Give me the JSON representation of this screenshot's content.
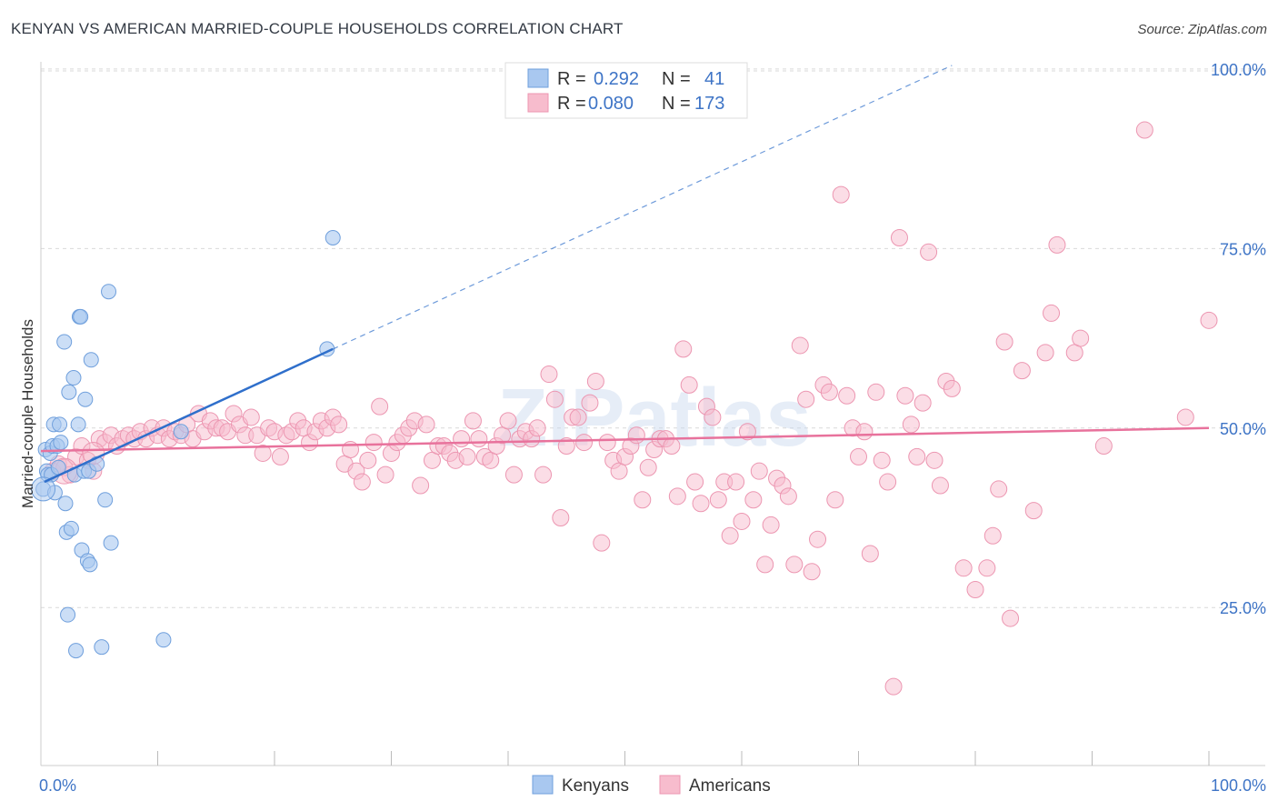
{
  "title": "KENYAN VS AMERICAN MARRIED-COUPLE HOUSEHOLDS CORRELATION CHART",
  "source": "Source: ZipAtlas.com",
  "watermark": "ZIPatlas",
  "colors": {
    "kenyans_fill": "#a9c8f0",
    "kenyans_stroke": "#6f9fdc",
    "kenyans_line": "#2f6fcb",
    "americans_fill": "#f7bccd",
    "americans_stroke": "#ec96b1",
    "americans_line": "#e8729c",
    "tick": "#3e74c6",
    "grid": "#d9d9d9"
  },
  "legend": {
    "row1": {
      "r_label": "R =",
      "r_value": "0.292",
      "n_label": "N =",
      "n_value": "41"
    },
    "row2": {
      "r_label": "R =",
      "r_value": "0.080",
      "n_label": "N =",
      "n_value": "173"
    }
  },
  "chart_data": {
    "type": "scatter",
    "title": "KENYAN VS AMERICAN MARRIED-COUPLE HOUSEHOLDS CORRELATION CHART",
    "xlabel": "",
    "ylabel": "Married-couple Households",
    "xlim": [
      0,
      100
    ],
    "ylim": [
      3,
      101
    ],
    "x_tick_labels": [
      "0.0%",
      "100.0%"
    ],
    "y_ticks": [
      25,
      50,
      75,
      100
    ],
    "y_tick_labels": [
      "25.0%",
      "50.0%",
      "75.0%",
      "100.0%"
    ],
    "grid": true,
    "legend_position": "top-center",
    "series": [
      {
        "name": "Kenyans",
        "r": 0.292,
        "n": 41,
        "trend": {
          "x0": 0.3,
          "y0": 42.5,
          "x1": 25.0,
          "y1": 61.0,
          "dashed_to_x": 78.0,
          "dashed_to_y": 100.5
        },
        "points": [
          [
            0.2,
            41.5
          ],
          [
            0.4,
            47.0
          ],
          [
            0.5,
            44.0
          ],
          [
            0.6,
            43.5
          ],
          [
            0.8,
            46.5
          ],
          [
            0.9,
            43.5
          ],
          [
            1.0,
            47.5
          ],
          [
            1.1,
            50.5
          ],
          [
            1.2,
            41.0
          ],
          [
            1.4,
            47.5
          ],
          [
            1.5,
            44.5
          ],
          [
            1.6,
            50.5
          ],
          [
            1.7,
            48.0
          ],
          [
            2.0,
            62.0
          ],
          [
            2.1,
            39.5
          ],
          [
            2.2,
            35.5
          ],
          [
            2.3,
            24.0
          ],
          [
            2.4,
            55.0
          ],
          [
            2.6,
            36.0
          ],
          [
            2.8,
            57.0
          ],
          [
            2.9,
            43.5
          ],
          [
            3.0,
            19.0
          ],
          [
            3.2,
            50.5
          ],
          [
            3.3,
            65.5
          ],
          [
            3.4,
            65.5
          ],
          [
            3.5,
            33.0
          ],
          [
            3.7,
            44.0
          ],
          [
            3.8,
            54.0
          ],
          [
            4.0,
            31.5
          ],
          [
            4.1,
            44.0
          ],
          [
            4.2,
            31.0
          ],
          [
            4.3,
            59.5
          ],
          [
            4.8,
            45.0
          ],
          [
            5.2,
            19.5
          ],
          [
            5.5,
            40.0
          ],
          [
            5.8,
            69.0
          ],
          [
            6.0,
            34.0
          ],
          [
            10.5,
            20.5
          ],
          [
            12.0,
            49.5
          ],
          [
            24.5,
            61.0
          ],
          [
            25.0,
            76.5
          ]
        ]
      },
      {
        "name": "Americans",
        "r": 0.08,
        "n": 173,
        "trend": {
          "x0": 0.0,
          "y0": 46.8,
          "x1": 100.0,
          "y1": 50.0
        },
        "points": [
          [
            1.0,
            44.0
          ],
          [
            1.5,
            45.0
          ],
          [
            2.0,
            44.5
          ],
          [
            2.5,
            43.5
          ],
          [
            3.0,
            46.0
          ],
          [
            3.5,
            47.5
          ],
          [
            4.0,
            45.5
          ],
          [
            4.5,
            44.0
          ],
          [
            5.0,
            48.5
          ],
          [
            5.5,
            48.0
          ],
          [
            6.0,
            49.0
          ],
          [
            6.5,
            47.5
          ],
          [
            7.0,
            48.5
          ],
          [
            7.5,
            49.0
          ],
          [
            8.0,
            48.5
          ],
          [
            8.5,
            49.5
          ],
          [
            9.0,
            48.5
          ],
          [
            9.5,
            50.0
          ],
          [
            10.0,
            49.0
          ],
          [
            10.5,
            50.0
          ],
          [
            11.0,
            48.5
          ],
          [
            11.5,
            49.5
          ],
          [
            12.0,
            49.0
          ],
          [
            12.5,
            50.5
          ],
          [
            13.0,
            48.5
          ],
          [
            13.5,
            52.0
          ],
          [
            14.0,
            49.5
          ],
          [
            14.5,
            51.0
          ],
          [
            15.0,
            50.0
          ],
          [
            15.5,
            50.0
          ],
          [
            16.0,
            49.5
          ],
          [
            16.5,
            52.0
          ],
          [
            17.0,
            50.5
          ],
          [
            17.5,
            49.0
          ],
          [
            18.0,
            51.5
          ],
          [
            18.5,
            49.0
          ],
          [
            19.0,
            46.5
          ],
          [
            19.5,
            50.0
          ],
          [
            20.0,
            49.5
          ],
          [
            20.5,
            46.0
          ],
          [
            21.0,
            49.0
          ],
          [
            21.5,
            49.5
          ],
          [
            22.0,
            51.0
          ],
          [
            22.5,
            50.0
          ],
          [
            23.0,
            48.0
          ],
          [
            23.5,
            49.5
          ],
          [
            24.0,
            51.0
          ],
          [
            24.5,
            50.0
          ],
          [
            25.0,
            51.5
          ],
          [
            25.5,
            50.5
          ],
          [
            26.0,
            45.0
          ],
          [
            26.5,
            47.0
          ],
          [
            27.0,
            44.0
          ],
          [
            27.5,
            42.5
          ],
          [
            28.0,
            45.5
          ],
          [
            28.5,
            48.0
          ],
          [
            29.0,
            53.0
          ],
          [
            29.5,
            43.5
          ],
          [
            30.0,
            46.5
          ],
          [
            30.5,
            48.0
          ],
          [
            31.0,
            49.0
          ],
          [
            31.5,
            50.0
          ],
          [
            32.0,
            51.0
          ],
          [
            32.5,
            42.0
          ],
          [
            33.0,
            50.5
          ],
          [
            33.5,
            45.5
          ],
          [
            34.0,
            47.5
          ],
          [
            34.5,
            47.5
          ],
          [
            35.0,
            46.5
          ],
          [
            35.5,
            45.5
          ],
          [
            36.0,
            48.5
          ],
          [
            36.5,
            46.0
          ],
          [
            37.0,
            51.0
          ],
          [
            37.5,
            48.5
          ],
          [
            38.0,
            46.0
          ],
          [
            38.5,
            45.5
          ],
          [
            39.0,
            47.5
          ],
          [
            39.5,
            49.0
          ],
          [
            40.0,
            51.0
          ],
          [
            40.5,
            43.5
          ],
          [
            41.0,
            48.5
          ],
          [
            41.5,
            49.5
          ],
          [
            42.0,
            48.5
          ],
          [
            42.5,
            50.0
          ],
          [
            43.0,
            43.5
          ],
          [
            43.5,
            57.5
          ],
          [
            44.0,
            54.0
          ],
          [
            44.5,
            37.5
          ],
          [
            45.0,
            47.5
          ],
          [
            45.5,
            51.5
          ],
          [
            46.0,
            51.5
          ],
          [
            46.5,
            48.0
          ],
          [
            47.0,
            53.5
          ],
          [
            47.5,
            56.5
          ],
          [
            48.0,
            34.0
          ],
          [
            48.5,
            48.0
          ],
          [
            49.0,
            45.5
          ],
          [
            49.5,
            44.0
          ],
          [
            50.0,
            46.0
          ],
          [
            50.5,
            47.5
          ],
          [
            51.0,
            49.0
          ],
          [
            51.5,
            40.0
          ],
          [
            52.0,
            44.5
          ],
          [
            52.5,
            47.0
          ],
          [
            53.0,
            48.5
          ],
          [
            53.5,
            48.5
          ],
          [
            54.0,
            47.5
          ],
          [
            54.5,
            40.5
          ],
          [
            55.0,
            61.0
          ],
          [
            55.5,
            56.0
          ],
          [
            56.0,
            42.5
          ],
          [
            56.5,
            39.5
          ],
          [
            57.0,
            53.0
          ],
          [
            57.5,
            51.5
          ],
          [
            58.0,
            40.0
          ],
          [
            58.5,
            42.5
          ],
          [
            59.0,
            35.0
          ],
          [
            59.5,
            42.5
          ],
          [
            60.0,
            37.0
          ],
          [
            60.5,
            49.5
          ],
          [
            61.0,
            40.0
          ],
          [
            61.5,
            44.0
          ],
          [
            62.0,
            31.0
          ],
          [
            62.5,
            36.5
          ],
          [
            63.0,
            43.0
          ],
          [
            63.5,
            42.0
          ],
          [
            64.0,
            40.5
          ],
          [
            64.5,
            31.0
          ],
          [
            65.0,
            61.5
          ],
          [
            65.5,
            54.0
          ],
          [
            66.0,
            30.0
          ],
          [
            66.5,
            34.5
          ],
          [
            67.0,
            56.0
          ],
          [
            67.5,
            55.0
          ],
          [
            68.0,
            40.0
          ],
          [
            68.5,
            82.5
          ],
          [
            69.0,
            54.5
          ],
          [
            69.5,
            50.0
          ],
          [
            70.0,
            46.0
          ],
          [
            70.5,
            49.5
          ],
          [
            71.0,
            32.5
          ],
          [
            71.5,
            55.0
          ],
          [
            72.0,
            45.5
          ],
          [
            72.5,
            42.5
          ],
          [
            73.0,
            14.0
          ],
          [
            73.5,
            76.5
          ],
          [
            74.0,
            54.5
          ],
          [
            74.5,
            50.5
          ],
          [
            75.0,
            46.0
          ],
          [
            75.5,
            53.5
          ],
          [
            76.0,
            74.5
          ],
          [
            76.5,
            45.5
          ],
          [
            77.0,
            42.0
          ],
          [
            77.5,
            56.5
          ],
          [
            78.0,
            55.5
          ],
          [
            79.0,
            30.5
          ],
          [
            80.0,
            27.5
          ],
          [
            81.0,
            30.5
          ],
          [
            81.5,
            35.0
          ],
          [
            82.0,
            41.5
          ],
          [
            82.5,
            62.0
          ],
          [
            83.0,
            23.5
          ],
          [
            84.0,
            58.0
          ],
          [
            85.0,
            38.5
          ],
          [
            86.0,
            60.5
          ],
          [
            86.5,
            66.0
          ],
          [
            87.0,
            75.5
          ],
          [
            88.5,
            60.5
          ],
          [
            89.0,
            62.5
          ],
          [
            91.0,
            47.5
          ],
          [
            94.5,
            91.5
          ],
          [
            98.0,
            51.5
          ],
          [
            100.0,
            65.0
          ]
        ]
      }
    ]
  },
  "bottom_legend": {
    "kenyans": "Kenyans",
    "americans": "Americans"
  }
}
